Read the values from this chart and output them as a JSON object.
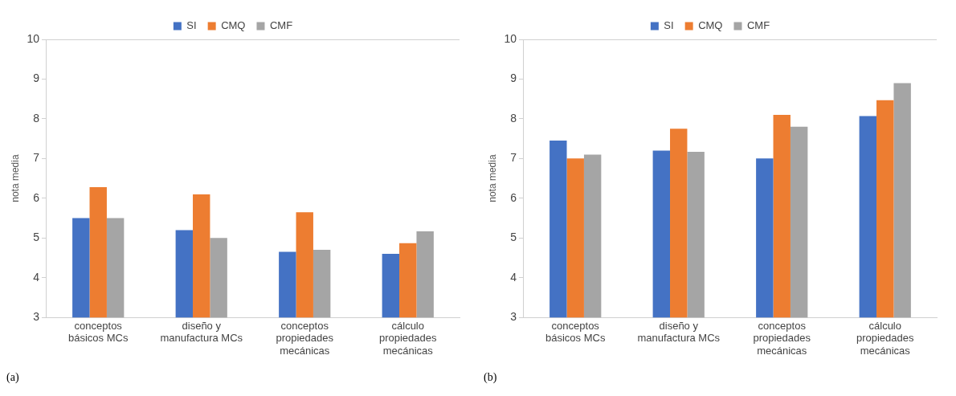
{
  "chart_data": [
    {
      "type": "bar",
      "ylabel": "nota media",
      "categories": [
        "conceptos básicos MCs",
        "diseño y manufactura MCs",
        "conceptos propiedades mecánicas",
        "cálculo propiedades mecánicas"
      ],
      "series": [
        {
          "name": "SI",
          "color": "#4472c4",
          "values": [
            5.5,
            5.2,
            4.65,
            4.6
          ]
        },
        {
          "name": "CMQ",
          "color": "#ed7d31",
          "values": [
            6.28,
            6.1,
            5.65,
            4.87
          ]
        },
        {
          "name": "CMF",
          "color": "#a5a5a5",
          "values": [
            5.5,
            5.0,
            4.7,
            5.17
          ]
        }
      ],
      "ylim": [
        3,
        10
      ],
      "yticks": [
        3,
        4,
        5,
        6,
        7,
        8,
        9,
        10
      ],
      "grid": false,
      "legend": "top",
      "annotations": [
        "(a)"
      ]
    },
    {
      "type": "bar",
      "ylabel": "nota media",
      "categories": [
        "conceptos básicos MCs",
        "diseño y manufactura MCs",
        "conceptos propiedades mecánicas",
        "cálculo propiedades mecánicas"
      ],
      "series": [
        {
          "name": "SI",
          "color": "#4472c4",
          "values": [
            7.45,
            7.2,
            7.0,
            8.07
          ]
        },
        {
          "name": "CMQ",
          "color": "#ed7d31",
          "values": [
            7.0,
            7.75,
            8.1,
            8.47
          ]
        },
        {
          "name": "CMF",
          "color": "#a5a5a5",
          "values": [
            7.1,
            7.17,
            7.8,
            8.9
          ]
        }
      ],
      "ylim": [
        3,
        10
      ],
      "yticks": [
        3,
        4,
        5,
        6,
        7,
        8,
        9,
        10
      ],
      "grid": false,
      "legend": "top",
      "annotations": [
        "(b)"
      ]
    }
  ]
}
